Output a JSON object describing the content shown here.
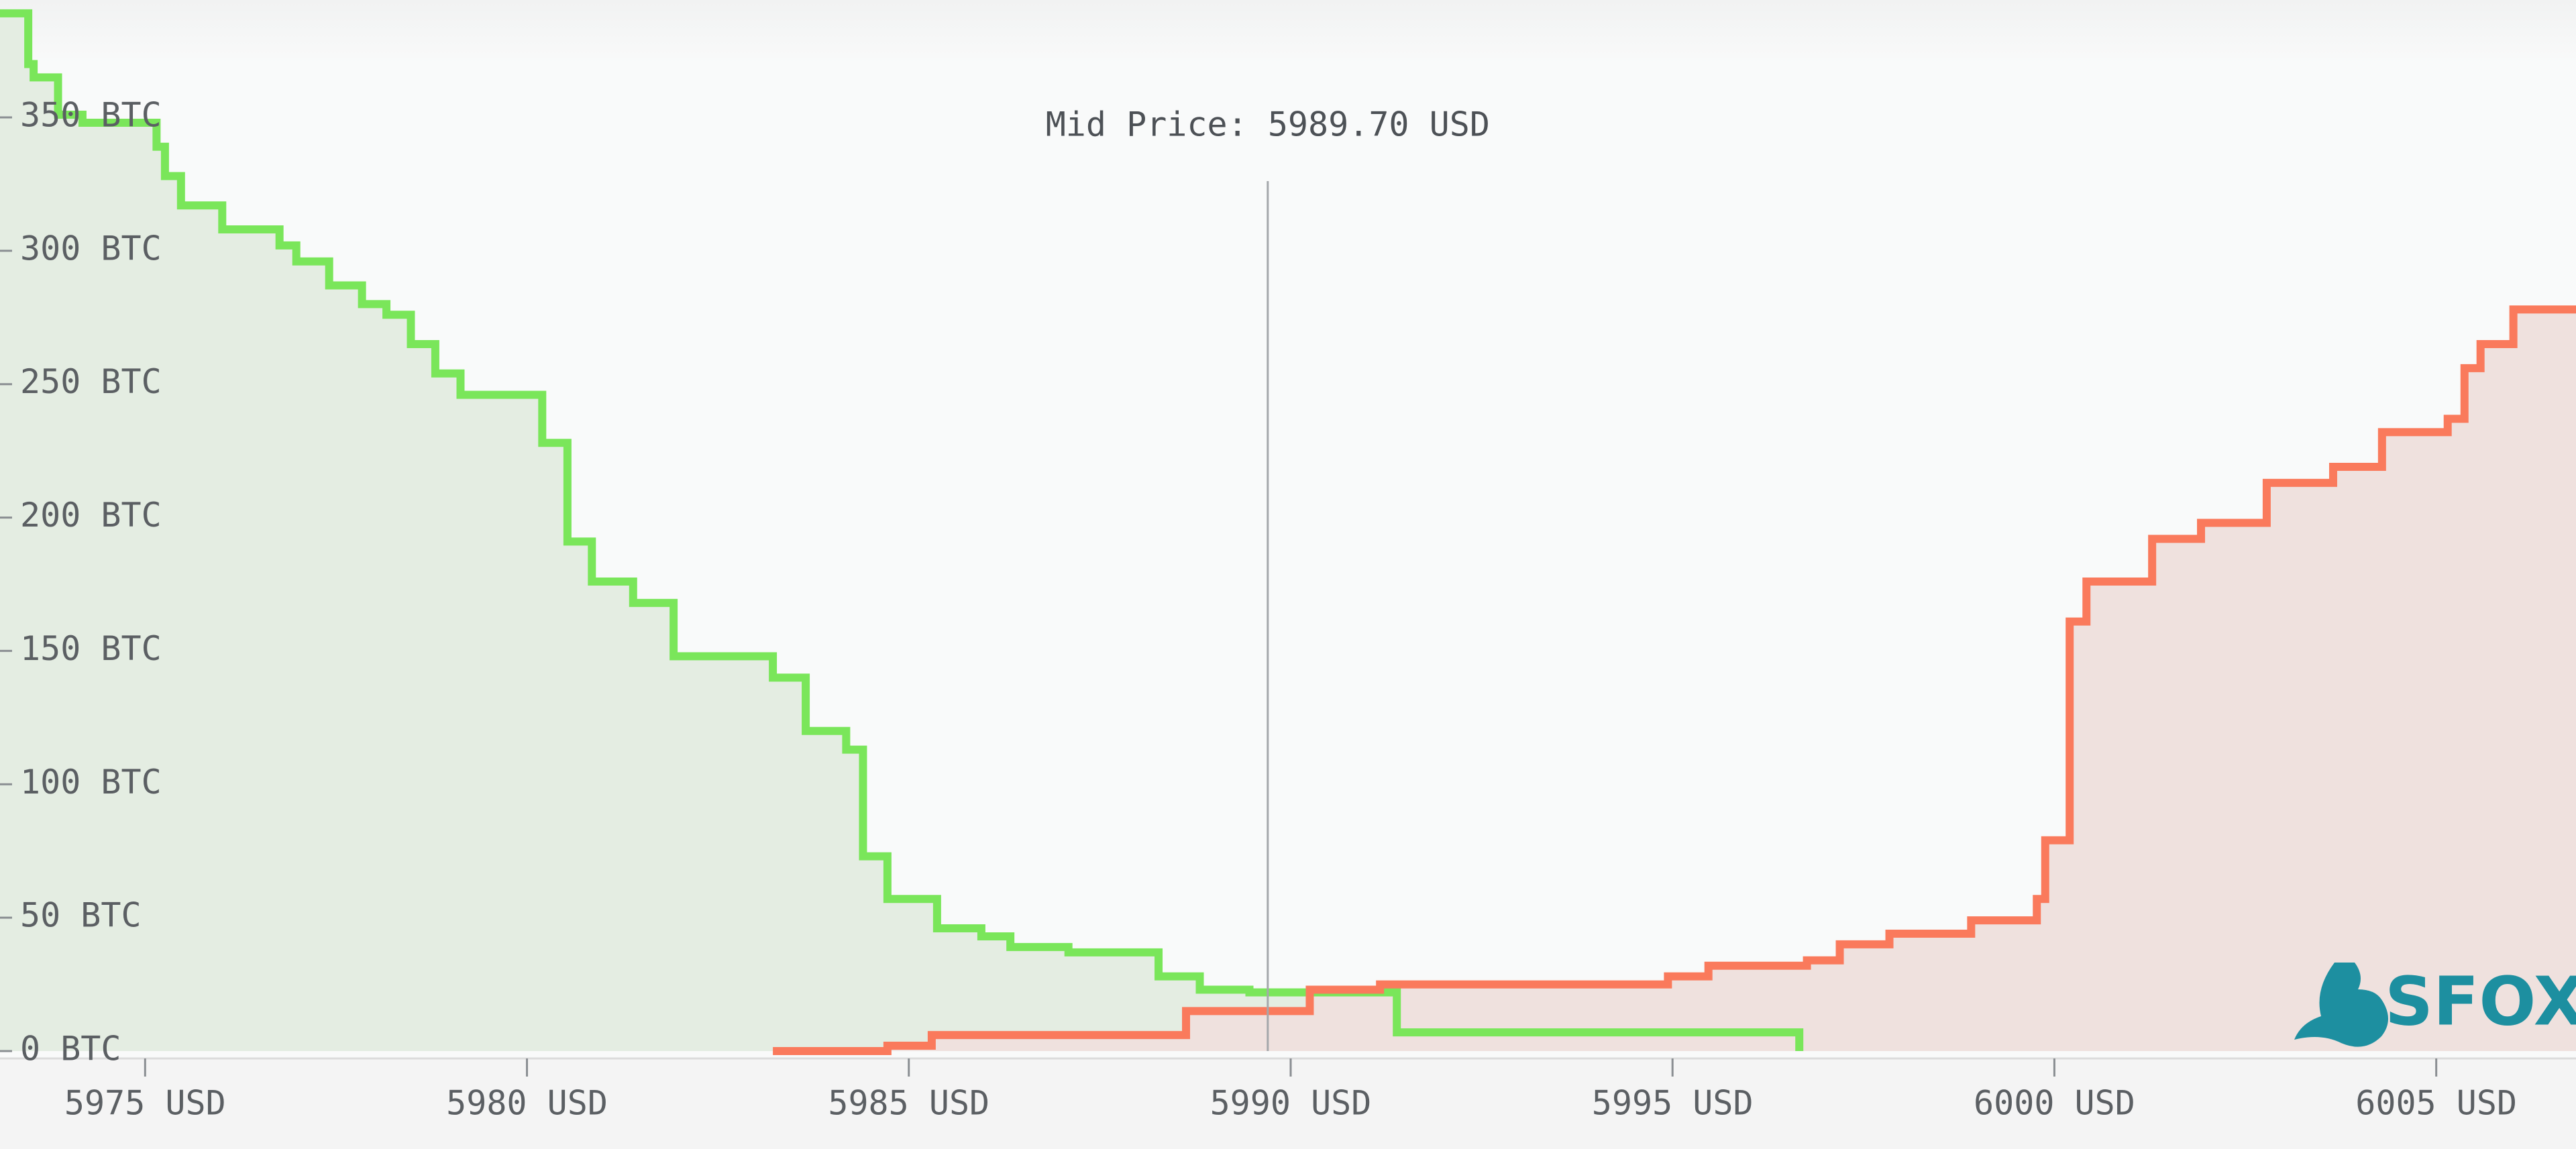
{
  "chart_data": {
    "type": "depth",
    "xlim": [
      5973.1,
      6006.83
    ],
    "ylim": [
      0,
      394
    ],
    "xticks": [
      {
        "value": 5975,
        "label": "5975 USD"
      },
      {
        "value": 5980,
        "label": "5980 USD"
      },
      {
        "value": 5985,
        "label": "5985 USD"
      },
      {
        "value": 5990,
        "label": "5990 USD"
      },
      {
        "value": 5995,
        "label": "5995 USD"
      },
      {
        "value": 6000,
        "label": "6000 USD"
      },
      {
        "value": 6005,
        "label": "6005 USD"
      }
    ],
    "yticks": [
      {
        "value": 0,
        "label": "0 BTC"
      },
      {
        "value": 50,
        "label": "50 BTC"
      },
      {
        "value": 100,
        "label": "100 BTC"
      },
      {
        "value": 150,
        "label": "150 BTC"
      },
      {
        "value": 200,
        "label": "200 BTC"
      },
      {
        "value": 250,
        "label": "250 BTC"
      },
      {
        "value": 300,
        "label": "300 BTC"
      },
      {
        "value": 350,
        "label": "350 BTC"
      }
    ],
    "mid_price": {
      "value": 5989.7,
      "label": "Mid Price: 5989.70 USD"
    },
    "series": [
      {
        "color": "#7ae65a",
        "fill": "#e4ede2",
        "x": [
          5973.1,
          5973.47,
          5973.54,
          5973.86,
          5974.18,
          5975.15,
          5975.26,
          5975.47,
          5976.01,
          5976.76,
          5976.98,
          5977.41,
          5977.84,
          5978.16,
          5978.48,
          5978.8,
          5979.13,
          5980.2,
          5980.53,
          5980.85,
          5981.39,
          5981.92,
          5983.22,
          5983.65,
          5984.18,
          5984.4,
          5984.72,
          5985.37,
          5985.95,
          5986.33,
          5987.09,
          5988.27,
          5988.81,
          5989.46,
          5991.39,
          5996.66
        ],
        "values": [
          389,
          370,
          365,
          351,
          348,
          339,
          328,
          317,
          308,
          302,
          296,
          287,
          280,
          276,
          265,
          254,
          246,
          228,
          191,
          176,
          168,
          148,
          140,
          120,
          113,
          73,
          57,
          46,
          43,
          39,
          37,
          28,
          23,
          22,
          7,
          0
        ]
      },
      {
        "color": "#fa7a5c",
        "fill": "#efe1de",
        "x": [
          5983.22,
          5984.72,
          5985.3,
          5988.63,
          5990.25,
          5991.17,
          5994.94,
          5995.47,
          5996.76,
          5997.19,
          5997.84,
          5998.91,
          5999.77,
          5999.88,
          6000.2,
          6000.42,
          6001.28,
          6001.92,
          6002.78,
          6003.65,
          6004.29,
          6005.15,
          6005.37,
          6005.58,
          6006.01,
          6006.83
        ],
        "values": [
          0,
          2,
          6,
          15,
          23,
          25,
          28,
          32,
          34,
          40,
          44,
          49,
          57,
          79,
          161,
          176,
          192,
          198,
          213,
          219,
          232,
          237,
          256,
          265,
          278,
          278
        ]
      }
    ]
  },
  "logo": {
    "text": "SFOX"
  }
}
